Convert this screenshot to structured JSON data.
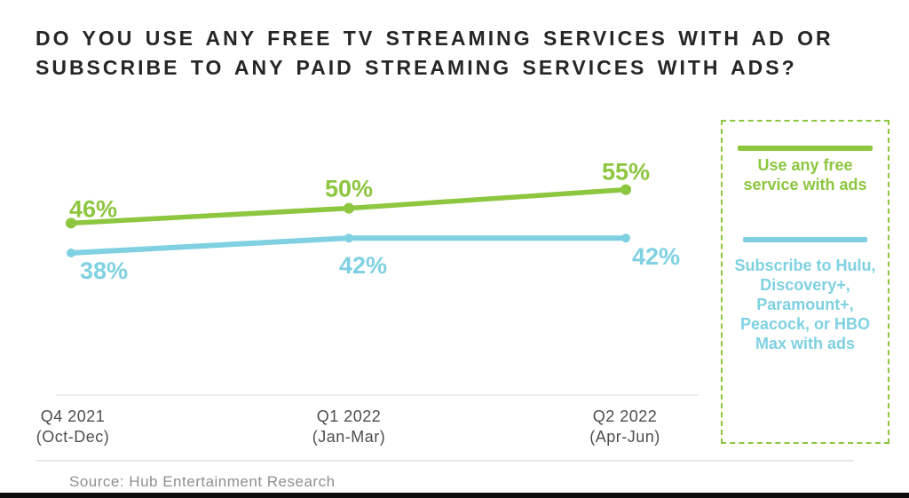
{
  "title": {
    "lines": [
      "DO YOU USE ANY FREE TV STREAMING SERVICES WITH AD OR",
      "SUBSCRIBE TO ANY PAID STREAMING SERVICES WITH ADS?"
    ]
  },
  "chart_data": {
    "type": "line",
    "title": "DO YOU USE ANY FREE TV STREAMING SERVICES WITH AD OR SUBSCRIBE TO ANY PAID STREAMING SERVICES WITH ADS?",
    "categories": [
      {
        "label": "Q4 2021",
        "sublabel": "(Oct-Dec)"
      },
      {
        "label": "Q1 2022",
        "sublabel": "(Jan-Mar)"
      },
      {
        "label": "Q2 2022",
        "sublabel": "(Apr-Jun)"
      }
    ],
    "series": [
      {
        "name": "Use any free service with ads",
        "color": "#8DC63F",
        "values": [
          46,
          50,
          55
        ]
      },
      {
        "name": "Subscribe to Hulu, Discovery+, Paramount+, Peacock, or HBO Max with ads",
        "color": "#7FD1E2",
        "values": [
          38,
          42,
          42
        ]
      }
    ],
    "value_suffix": "%",
    "ylim": [
      30,
      60
    ],
    "grid": false,
    "legend_position": "right",
    "data_labels": true
  },
  "legend": {
    "items": [
      {
        "color": "#8DC63F",
        "lines": [
          "Use any free",
          "service with ads"
        ]
      },
      {
        "color": "#7FD1E2",
        "lines": [
          "Subscribe to Hulu,",
          "Discovery+,",
          "Paramount+,",
          "Peacock, or  HBO",
          "Max with ads"
        ]
      }
    ]
  },
  "footer": {
    "source": "Source: Hub Entertainment Research"
  },
  "colors": {
    "green": "#8DC63F",
    "blue": "#7FD1E2",
    "title_text": "#262626",
    "axis_label": "#4E4E4E",
    "source_text": "#8F8F8F",
    "divider": "#ECECEC",
    "bottom_bar": "#0D0D0D"
  }
}
